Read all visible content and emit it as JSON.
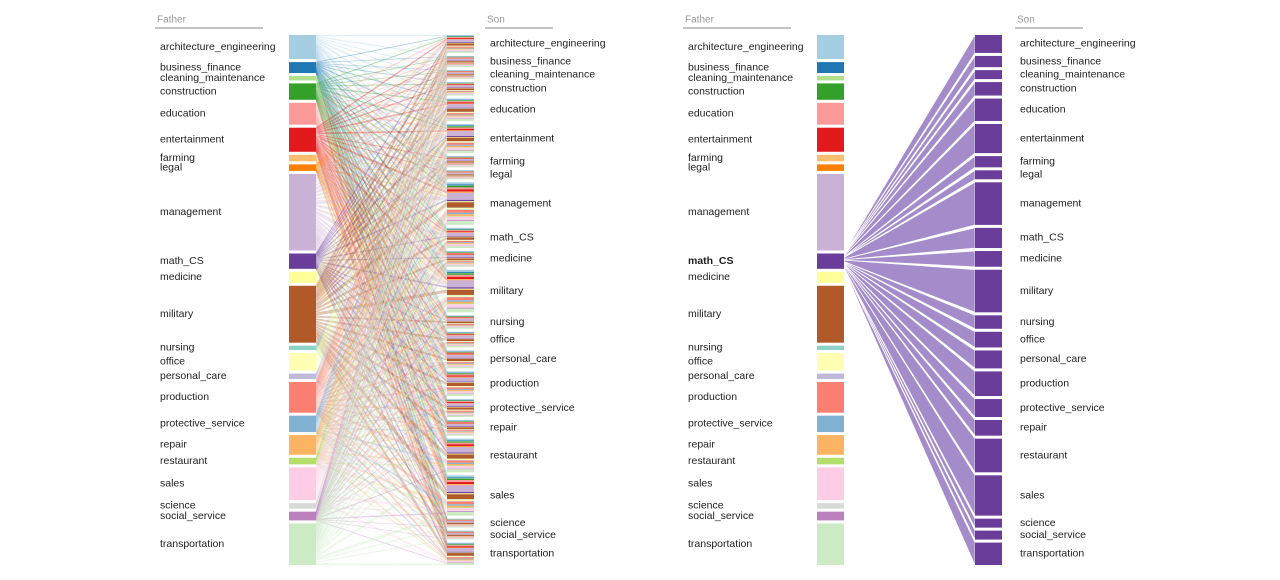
{
  "panels": [
    {
      "father_header": "Father",
      "son_header": "Son"
    },
    {
      "father_header": "Father",
      "son_header": "Son"
    }
  ],
  "highlight": "math_CS",
  "categories": [
    {
      "name": "architecture_engineering",
      "color": "#a6cee3",
      "father": 22,
      "son": 16
    },
    {
      "name": "business_finance",
      "color": "#1f78b4",
      "father": 10,
      "son": 10
    },
    {
      "name": "cleaning_maintenance",
      "color": "#b2df8a",
      "father": 4,
      "son": 8
    },
    {
      "name": "construction",
      "color": "#33a02c",
      "father": 15,
      "son": 12
    },
    {
      "name": "education",
      "color": "#fb9a99",
      "father": 20,
      "son": 20
    },
    {
      "name": "entertainment",
      "color": "#e31a1c",
      "father": 22,
      "son": 26
    },
    {
      "name": "farming",
      "color": "#fdbf6f",
      "father": 6,
      "son": 10
    },
    {
      "name": "legal",
      "color": "#ff7f00",
      "father": 6,
      "son": 8
    },
    {
      "name": "management",
      "color": "#cab2d6",
      "father": 70,
      "son": 38
    },
    {
      "name": "math_CS",
      "color": "#6a3d9a",
      "father": 14,
      "son": 18
    },
    {
      "name": "medicine",
      "color": "#ffff99",
      "father": 10,
      "son": 14
    },
    {
      "name": "military",
      "color": "#b15928",
      "father": 52,
      "son": 38
    },
    {
      "name": "nursing",
      "color": "#8dd3c7",
      "father": 4,
      "son": 12
    },
    {
      "name": "office",
      "color": "#ffffb3",
      "father": 16,
      "son": 14
    },
    {
      "name": "personal_care",
      "color": "#bebada",
      "father": 5,
      "son": 16
    },
    {
      "name": "production",
      "color": "#fb8072",
      "father": 28,
      "son": 22
    },
    {
      "name": "protective_service",
      "color": "#80b1d3",
      "father": 15,
      "son": 16
    },
    {
      "name": "repair",
      "color": "#fdb462",
      "father": 18,
      "son": 14
    },
    {
      "name": "restaurant",
      "color": "#b3de69",
      "father": 6,
      "son": 30
    },
    {
      "name": "sales",
      "color": "#fccde5",
      "father": 30,
      "son": 36
    },
    {
      "name": "science",
      "color": "#d9d9d9",
      "father": 5,
      "son": 8
    },
    {
      "name": "social_service",
      "color": "#bc80bd",
      "father": 8,
      "son": 8
    },
    {
      "name": "transportation",
      "color": "#ccebc5",
      "father": 38,
      "son": 20
    }
  ]
}
